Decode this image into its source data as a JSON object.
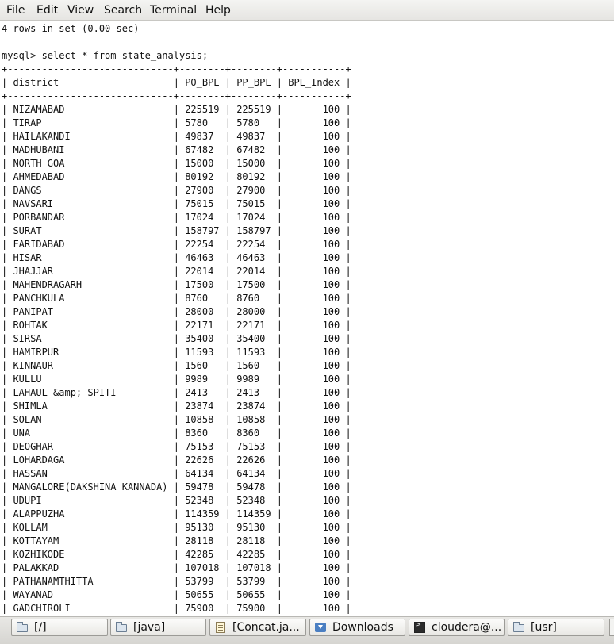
{
  "menu": [
    "File",
    "Edit",
    "View",
    "Search",
    "Terminal",
    "Help"
  ],
  "terminal": {
    "prev_result": "4 rows in set (0.00 sec)",
    "prompt": "mysql>",
    "command": "select * from state_analysis;",
    "columns": [
      "district",
      "PO_BPL",
      "PP_BPL",
      "BPL_Index"
    ],
    "rows": [
      [
        "NIZAMABAD",
        "225519",
        "225519",
        "100"
      ],
      [
        "TIRAP",
        "5780",
        "5780",
        "100"
      ],
      [
        "HAILAKANDI",
        "49837",
        "49837",
        "100"
      ],
      [
        "MADHUBANI",
        "67482",
        "67482",
        "100"
      ],
      [
        "NORTH GOA",
        "15000",
        "15000",
        "100"
      ],
      [
        "AHMEDABAD",
        "80192",
        "80192",
        "100"
      ],
      [
        "DANGS",
        "27900",
        "27900",
        "100"
      ],
      [
        "NAVSARI",
        "75015",
        "75015",
        "100"
      ],
      [
        "PORBANDAR",
        "17024",
        "17024",
        "100"
      ],
      [
        "SURAT",
        "158797",
        "158797",
        "100"
      ],
      [
        "FARIDABAD",
        "22254",
        "22254",
        "100"
      ],
      [
        "HISAR",
        "46463",
        "46463",
        "100"
      ],
      [
        "JHAJJAR",
        "22014",
        "22014",
        "100"
      ],
      [
        "MAHENDRAGARH",
        "17500",
        "17500",
        "100"
      ],
      [
        "PANCHKULA",
        "8760",
        "8760",
        "100"
      ],
      [
        "PANIPAT",
        "28000",
        "28000",
        "100"
      ],
      [
        "ROHTAK",
        "22171",
        "22171",
        "100"
      ],
      [
        "SIRSA",
        "35400",
        "35400",
        "100"
      ],
      [
        "HAMIRPUR",
        "11593",
        "11593",
        "100"
      ],
      [
        "KINNAUR",
        "1560",
        "1560",
        "100"
      ],
      [
        "KULLU",
        "9989",
        "9989",
        "100"
      ],
      [
        "LAHAUL &amp; SPITI",
        "2413",
        "2413",
        "100"
      ],
      [
        "SHIMLA",
        "23874",
        "23874",
        "100"
      ],
      [
        "SOLAN",
        "10858",
        "10858",
        "100"
      ],
      [
        "UNA",
        "8360",
        "8360",
        "100"
      ],
      [
        "DEOGHAR",
        "75153",
        "75153",
        "100"
      ],
      [
        "LOHARDAGA",
        "22626",
        "22626",
        "100"
      ],
      [
        "HASSAN",
        "64134",
        "64134",
        "100"
      ],
      [
        "MANGALORE(DAKSHINA KANNADA)",
        "59478",
        "59478",
        "100"
      ],
      [
        "UDUPI",
        "52348",
        "52348",
        "100"
      ],
      [
        "ALAPPUZHA",
        "114359",
        "114359",
        "100"
      ],
      [
        "KOLLAM",
        "95130",
        "95130",
        "100"
      ],
      [
        "KOTTAYAM",
        "28118",
        "28118",
        "100"
      ],
      [
        "KOZHIKODE",
        "42285",
        "42285",
        "100"
      ],
      [
        "PALAKKAD",
        "107018",
        "107018",
        "100"
      ],
      [
        "PATHANAMTHITTA",
        "53799",
        "53799",
        "100"
      ],
      [
        "WAYANAD",
        "50655",
        "50655",
        "100"
      ],
      [
        "GADCHIROLI",
        "75900",
        "75900",
        "100"
      ]
    ]
  },
  "taskbar": [
    {
      "label": "[/]",
      "icon": "folder-icon"
    },
    {
      "label": "[java]",
      "icon": "folder-icon"
    },
    {
      "label": "[Concat.ja...",
      "icon": "text-editor-icon"
    },
    {
      "label": "Downloads",
      "icon": "downloads-folder-icon"
    },
    {
      "label": "cloudera@...",
      "icon": "terminal-icon"
    },
    {
      "label": "[usr]",
      "icon": "folder-icon"
    }
  ]
}
